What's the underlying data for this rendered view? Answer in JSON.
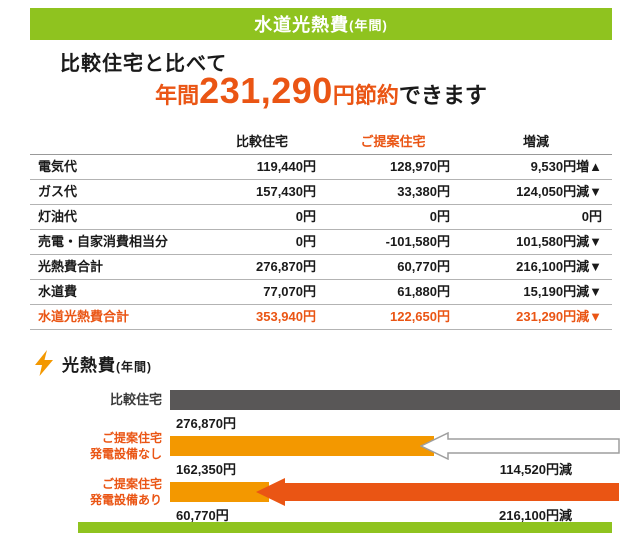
{
  "header": {
    "title": "水道光熱費",
    "suffix": "(年間)"
  },
  "headline": {
    "line1": "比較住宅と比べて",
    "prefix": "年間",
    "amount": "231,290",
    "mid": "円節約",
    "suffix": "できます"
  },
  "table": {
    "col_headers": [
      "比較住宅",
      "ご提案住宅",
      "増減"
    ],
    "rows": [
      {
        "label": "電気代",
        "compare": "119,440円",
        "proposed": "128,970円",
        "change": "9,530円増▲"
      },
      {
        "label": "ガス代",
        "compare": "157,430円",
        "proposed": "33,380円",
        "change": "124,050円減▼"
      },
      {
        "label": "灯油代",
        "compare": "0円",
        "proposed": "0円",
        "change": "0円"
      },
      {
        "label": "売電・自家消費相当分",
        "compare": "0円",
        "proposed": "-101,580円",
        "change": "101,580円減▼"
      },
      {
        "label": "光熱費合計",
        "compare": "276,870円",
        "proposed": "60,770円",
        "change": "216,100円減▼"
      },
      {
        "label": "水道費",
        "compare": "77,070円",
        "proposed": "61,880円",
        "change": "15,190円減▼"
      },
      {
        "label": "水道光熱費合計",
        "compare": "353,940円",
        "proposed": "122,650円",
        "change": "231,290円減▼"
      }
    ]
  },
  "chart_section": {
    "title": "光熱費",
    "suffix": "(年間)"
  },
  "chart_data": {
    "type": "bar",
    "orientation": "horizontal",
    "title": "光熱費(年間)",
    "unit": "円",
    "xmax": 276870,
    "categories": [
      "比較住宅",
      "ご提案住宅 発電設備なし",
      "ご提案住宅 発電設備あり"
    ],
    "values": [
      276870,
      162350,
      60770
    ],
    "bars": [
      {
        "label_lines": [
          "比較住宅"
        ],
        "value": 276870,
        "value_label": "276,870円",
        "color": "#595757",
        "label_color": "#3a3a3a"
      },
      {
        "label_lines": [
          "ご提案住宅",
          "発電設備なし"
        ],
        "value": 162350,
        "value_label": "162,350円",
        "color": "#F39800",
        "label_color": "#EA5514",
        "reduction": 114520,
        "reduction_label": "114,520円減",
        "arrow_style": "outline"
      },
      {
        "label_lines": [
          "ご提案住宅",
          "発電設備あり"
        ],
        "value": 60770,
        "value_label": "60,770円",
        "color": "#F39800",
        "label_color": "#EA5514",
        "reduction": 216100,
        "reduction_label": "216,100円減",
        "arrow_style": "solid"
      }
    ],
    "arrow_colors": {
      "outline_fill": "#ffffff",
      "outline_stroke": "#9e9e9e",
      "solid_fill": "#EA5514"
    }
  },
  "colors": {
    "green": "#8FC31F",
    "orange": "#EA5514",
    "bar_orange": "#F39800",
    "bar_gray": "#595757"
  }
}
